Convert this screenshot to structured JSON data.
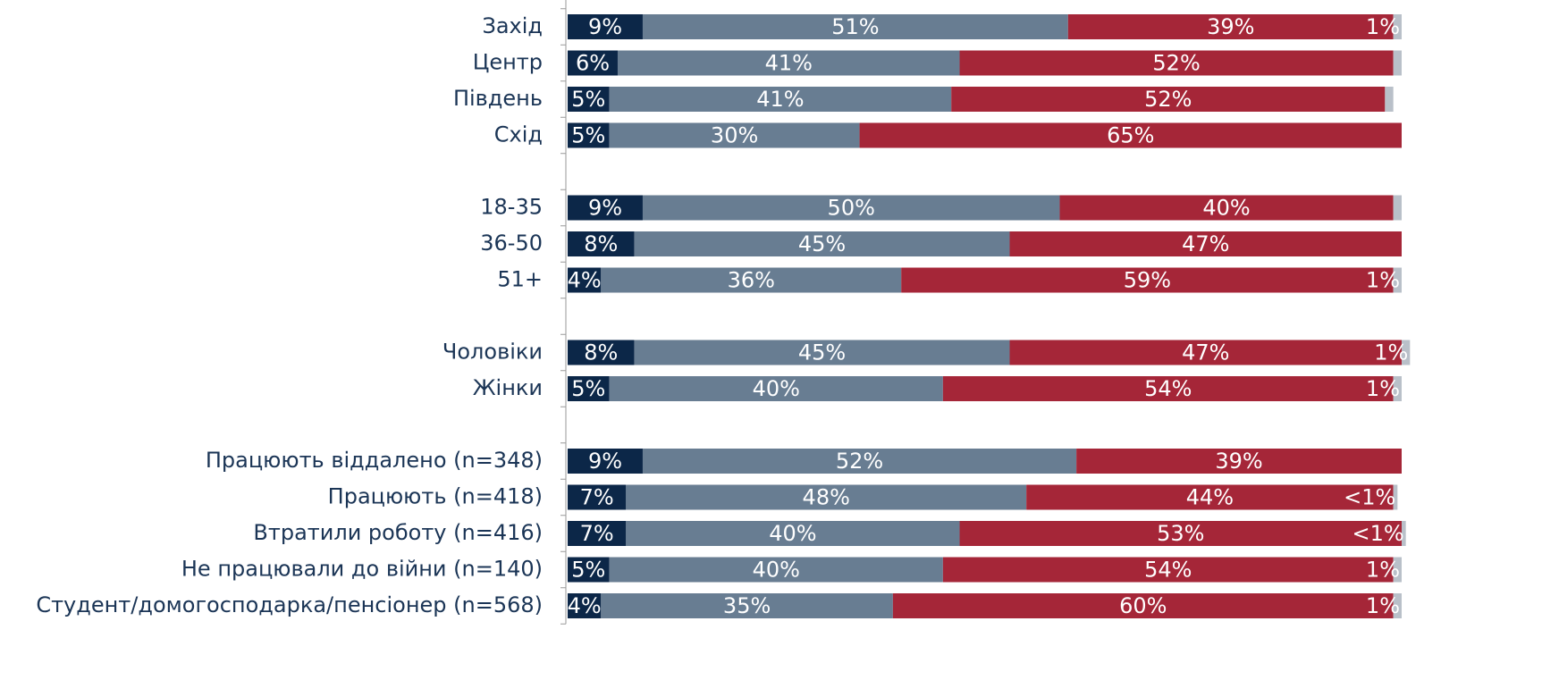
{
  "chart_data": {
    "type": "stacked-bar-horizontal",
    "categories": [
      "Захід",
      "Центр",
      "Південь",
      "Схід",
      null,
      "18-35",
      "36-50",
      "51+",
      null,
      "Чоловіки",
      "Жінки",
      null,
      "Працюють віддалено (n=348)",
      "Працюють (n=418)",
      "Втратили роботу (n=416)",
      "Не працювали до війни (n=140)",
      "Студент/домогосподарка/пенсіонер (n=568)"
    ],
    "series": [
      {
        "color": "#0c2748",
        "values": [
          9,
          6,
          5,
          5,
          null,
          9,
          8,
          4,
          null,
          8,
          5,
          null,
          9,
          7,
          7,
          5,
          4
        ],
        "value_labels": [
          "9%",
          "6%",
          "5%",
          "5%",
          null,
          "9%",
          "8%",
          "4%",
          null,
          "8%",
          "5%",
          null,
          "9%",
          "7%",
          "7%",
          "5%",
          "4%"
        ]
      },
      {
        "color": "#687d92",
        "values": [
          51,
          41,
          41,
          30,
          null,
          50,
          45,
          36,
          null,
          45,
          40,
          null,
          52,
          48,
          40,
          40,
          35
        ],
        "value_labels": [
          "51%",
          "41%",
          "41%",
          "30%",
          null,
          "50%",
          "45%",
          "36%",
          null,
          "45%",
          "40%",
          null,
          "52%",
          "48%",
          "40%",
          "40%",
          "35%"
        ]
      },
      {
        "color": "#a52638",
        "values": [
          39,
          52,
          52,
          65,
          null,
          40,
          47,
          59,
          null,
          47,
          54,
          null,
          39,
          44,
          53,
          54,
          60
        ],
        "value_labels": [
          "39%",
          "52%",
          "52%",
          "65%",
          null,
          "40%",
          "47%",
          "59%",
          null,
          "47%",
          "54%",
          null,
          "39%",
          "44%",
          "53%",
          "54%",
          "60%"
        ]
      },
      {
        "color": "#b9c0c9",
        "values": [
          1,
          1,
          1,
          null,
          null,
          1,
          null,
          1,
          null,
          1,
          1,
          null,
          null,
          0.5,
          0.5,
          1,
          1
        ],
        "value_labels": [
          "1%",
          null,
          null,
          null,
          null,
          null,
          null,
          "1%",
          null,
          "1%",
          "1%",
          null,
          null,
          "<1%",
          "<1%",
          "1%",
          "1%"
        ]
      }
    ],
    "xlim": [
      0,
      100
    ]
  }
}
